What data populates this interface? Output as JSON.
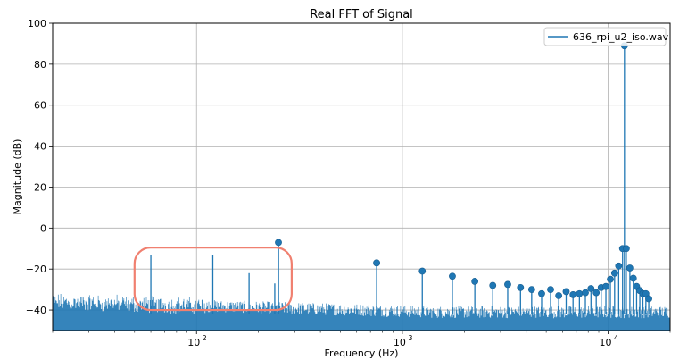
{
  "chart_data": {
    "type": "line",
    "title": "Real FFT of Signal",
    "xlabel": "Frequency (Hz)",
    "ylabel": "Magnitude (dB)",
    "xscale": "log",
    "xlim": [
      20,
      20000
    ],
    "ylim": [
      -50,
      100
    ],
    "y_ticks": [
      -40,
      -20,
      0,
      20,
      40,
      60,
      80,
      100
    ],
    "y_tick_labels": [
      "−40",
      "−20",
      "0",
      "20",
      "40",
      "60",
      "80",
      "100"
    ],
    "x_ticks": [
      100,
      1000,
      10000
    ],
    "x_tick_labels": [
      {
        "base": "10",
        "exp": "2"
      },
      {
        "base": "10",
        "exp": "3"
      },
      {
        "base": "10",
        "exp": "4"
      }
    ],
    "grid": true,
    "legend": {
      "placement": "top-right",
      "entries": [
        "636_rpi_u2_iso.wav"
      ]
    },
    "series_color": "#1f77b4",
    "noise_floor": {
      "low_freq_db": -36,
      "high_freq_db": -41
    },
    "spikes": [
      {
        "freq": 60,
        "db": -13
      },
      {
        "freq": 120,
        "db": -13
      },
      {
        "freq": 180,
        "db": -22
      },
      {
        "freq": 240,
        "db": -27
      },
      {
        "freq": 250,
        "db": -7
      }
    ],
    "peaks": [
      {
        "freq": 250,
        "db": -7
      },
      {
        "freq": 750,
        "db": -17
      },
      {
        "freq": 1250,
        "db": -21
      },
      {
        "freq": 1750,
        "db": -23.5
      },
      {
        "freq": 2250,
        "db": -26
      },
      {
        "freq": 2750,
        "db": -28
      },
      {
        "freq": 3250,
        "db": -27.5
      },
      {
        "freq": 3750,
        "db": -29
      },
      {
        "freq": 4250,
        "db": -30
      },
      {
        "freq": 4750,
        "db": -32
      },
      {
        "freq": 5250,
        "db": -30
      },
      {
        "freq": 5750,
        "db": -33
      },
      {
        "freq": 6250,
        "db": -31
      },
      {
        "freq": 6750,
        "db": -32.5
      },
      {
        "freq": 7250,
        "db": -32
      },
      {
        "freq": 7750,
        "db": -31.5
      },
      {
        "freq": 8250,
        "db": -29.5
      },
      {
        "freq": 8750,
        "db": -31.5
      },
      {
        "freq": 9250,
        "db": -29
      },
      {
        "freq": 9750,
        "db": -28.5
      },
      {
        "freq": 10250,
        "db": -25
      },
      {
        "freq": 10750,
        "db": -22
      },
      {
        "freq": 11250,
        "db": -18.5
      },
      {
        "freq": 11750,
        "db": -10
      },
      {
        "freq": 12000,
        "db": 89
      },
      {
        "freq": 12250,
        "db": -10
      },
      {
        "freq": 12750,
        "db": -19.5
      },
      {
        "freq": 13250,
        "db": -24.5
      },
      {
        "freq": 13750,
        "db": -28.5
      },
      {
        "freq": 14250,
        "db": -30.5
      },
      {
        "freq": 14750,
        "db": -32
      },
      {
        "freq": 15250,
        "db": -32
      },
      {
        "freq": 15750,
        "db": -34.5
      }
    ],
    "annotation": {
      "type": "rounded-rect",
      "color": "#f08070",
      "x_range": [
        50,
        290
      ],
      "y_range": [
        -40,
        -9.5
      ]
    }
  }
}
